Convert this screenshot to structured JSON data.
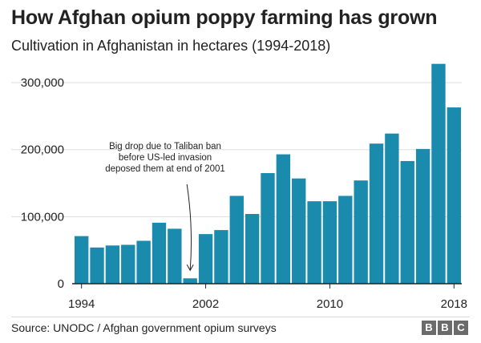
{
  "header": {
    "title": "How Afghan opium poppy farming has grown",
    "subtitle": "Cultivation in Afghanistan in hectares (1994-2018)"
  },
  "footer": {
    "source": "Source: UNODC / Afghan government opium surveys",
    "logo_letters": [
      "B",
      "B",
      "C"
    ]
  },
  "colors": {
    "bar": "#1a8aad",
    "axis": "#222222",
    "grid": "#dddddd",
    "text": "#222222"
  },
  "chart_data": {
    "type": "bar",
    "title": "How Afghan opium poppy farming has grown",
    "subtitle": "Cultivation in Afghanistan in hectares (1994-2018)",
    "xlabel": "",
    "ylabel": "",
    "categories": [
      "1994",
      "1995",
      "1996",
      "1997",
      "1998",
      "1999",
      "2000",
      "2001",
      "2002",
      "2003",
      "2004",
      "2005",
      "2006",
      "2007",
      "2008",
      "2009",
      "2010",
      "2011",
      "2012",
      "2013",
      "2014",
      "2015",
      "2016",
      "2017",
      "2018"
    ],
    "values": [
      71000,
      54000,
      57000,
      58000,
      64000,
      91000,
      82000,
      8000,
      74000,
      80000,
      131000,
      104000,
      165000,
      193000,
      157000,
      123000,
      123000,
      131000,
      154000,
      209000,
      224000,
      183000,
      201000,
      328000,
      263000
    ],
    "x_tick_labels": [
      "1994",
      "2002",
      "2010",
      "2018"
    ],
    "y_ticks": [
      0,
      100000,
      200000,
      300000
    ],
    "y_tick_labels": [
      "0",
      "100,000",
      "200,000",
      "300,000"
    ],
    "ylim": [
      0,
      330000
    ],
    "grid": true,
    "annotation": {
      "lines": [
        "Big drop due to Taliban ban",
        "before US-led invasion",
        "deposed them at end of 2001"
      ],
      "target_category": "2001"
    }
  }
}
